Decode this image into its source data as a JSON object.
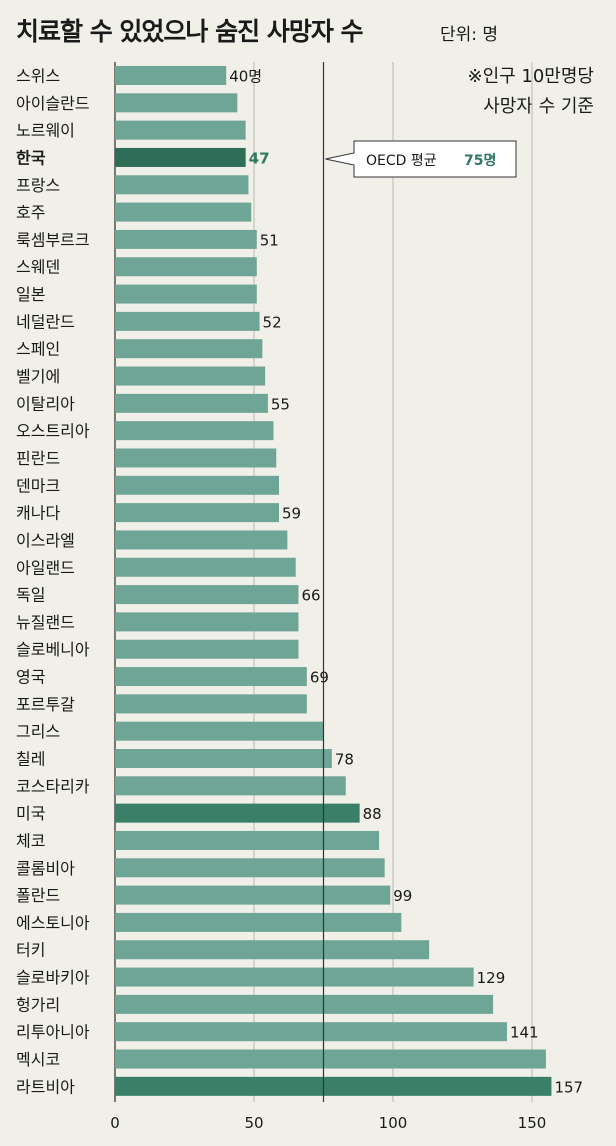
{
  "header": {
    "title": "치료할 수 있었으나 숨진 사망자 수",
    "unit": "단위: 명",
    "note_line1": "※인구 10만명당",
    "note_line2": "사망자 수 기준"
  },
  "colors": {
    "bar": "#6fa596",
    "bar_highlight": "#3a8068",
    "bar_korea": "#2e6e58",
    "value_korea": "#2e7a60",
    "background": "#f0efe8"
  },
  "chart_data": {
    "type": "bar",
    "orientation": "horizontal",
    "categories": [
      "스위스",
      "아이슬란드",
      "노르웨이",
      "한국",
      "프랑스",
      "호주",
      "룩셈부르크",
      "스웨덴",
      "일본",
      "네덜란드",
      "스페인",
      "벨기에",
      "이탈리아",
      "오스트리아",
      "핀란드",
      "덴마크",
      "캐나다",
      "이스라엘",
      "아일랜드",
      "독일",
      "뉴질랜드",
      "슬로베니아",
      "영국",
      "포르투갈",
      "그리스",
      "칠레",
      "코스타리카",
      "미국",
      "체코",
      "콜롬비아",
      "폴란드",
      "에스토니아",
      "터키",
      "슬로바키아",
      "헝가리",
      "리투아니아",
      "멕시코",
      "라트비아"
    ],
    "values": [
      40,
      44,
      47,
      47,
      48,
      49,
      51,
      51,
      51,
      52,
      53,
      54,
      55,
      57,
      58,
      59,
      59,
      62,
      65,
      66,
      66,
      66,
      69,
      69,
      75,
      78,
      83,
      88,
      95,
      97,
      99,
      103,
      113,
      129,
      136,
      141,
      155,
      157
    ],
    "value_labels": [
      "40명",
      "",
      "",
      "47",
      "",
      "",
      "51",
      "",
      "",
      "52",
      "",
      "",
      "55",
      "",
      "",
      "",
      "59",
      "",
      "",
      "66",
      "",
      "",
      "69",
      "",
      "",
      "78",
      "",
      "88",
      "",
      "",
      "99",
      "",
      "",
      "129",
      "",
      "141",
      "",
      "157"
    ],
    "highlight": [
      "한국",
      "미국",
      "라트비아"
    ],
    "xlim": [
      0,
      160
    ],
    "xticks": [
      0,
      50,
      100,
      150
    ],
    "xtick_labels": [
      "0",
      "50",
      "100",
      "150"
    ],
    "reference_line": {
      "value": 75,
      "label": "OECD 평균",
      "value_label": "75명"
    }
  }
}
